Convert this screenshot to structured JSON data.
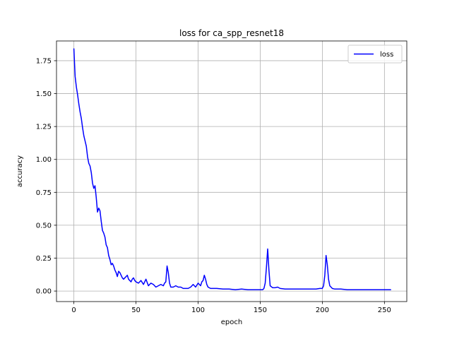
{
  "chart_data": {
    "type": "line",
    "title": "loss for ca_spp_resnet18",
    "xlabel": "epoch",
    "ylabel": "accuracy",
    "xlim": [
      -14,
      268
    ],
    "ylim": [
      -0.08,
      1.9
    ],
    "xticks": [
      0,
      50,
      100,
      150,
      200,
      250
    ],
    "xtick_labels": [
      "0",
      "50",
      "100",
      "150",
      "200",
      "250"
    ],
    "yticks": [
      0.0,
      0.25,
      0.5,
      0.75,
      1.0,
      1.25,
      1.5,
      1.75
    ],
    "ytick_labels": [
      "0.00",
      "0.25",
      "0.50",
      "0.75",
      "1.00",
      "1.25",
      "1.50",
      "1.75"
    ],
    "grid": true,
    "legend_position": "upper-right",
    "series": [
      {
        "name": "loss",
        "color": "#0000ff",
        "x": [
          0,
          1,
          2,
          3,
          4,
          5,
          6,
          7,
          8,
          9,
          10,
          11,
          12,
          13,
          14,
          15,
          16,
          17,
          18,
          19,
          20,
          21,
          22,
          23,
          24,
          25,
          26,
          27,
          28,
          29,
          30,
          31,
          32,
          33,
          34,
          35,
          36,
          37,
          38,
          39,
          40,
          41,
          42,
          43,
          44,
          45,
          46,
          47,
          48,
          49,
          50,
          52,
          54,
          56,
          58,
          60,
          62,
          64,
          66,
          68,
          70,
          72,
          73,
          74,
          75,
          76,
          77,
          78,
          80,
          82,
          84,
          86,
          88,
          90,
          92,
          94,
          96,
          97,
          98,
          100,
          101,
          102,
          103,
          104,
          105,
          106,
          107,
          108,
          110,
          112,
          115,
          120,
          125,
          130,
          135,
          140,
          145,
          150,
          152,
          153,
          154,
          155,
          156,
          157,
          158,
          160,
          162,
          164,
          166,
          170,
          175,
          180,
          185,
          190,
          195,
          198,
          200,
          201,
          202,
          203,
          204,
          205,
          206,
          208,
          210,
          215,
          220,
          225,
          230,
          235,
          240,
          245,
          250,
          255
        ],
        "y": [
          1.84,
          1.63,
          1.55,
          1.49,
          1.42,
          1.36,
          1.31,
          1.24,
          1.18,
          1.14,
          1.1,
          1.02,
          0.97,
          0.95,
          0.9,
          0.82,
          0.78,
          0.8,
          0.71,
          0.6,
          0.63,
          0.61,
          0.53,
          0.46,
          0.44,
          0.41,
          0.35,
          0.33,
          0.27,
          0.24,
          0.2,
          0.21,
          0.19,
          0.16,
          0.14,
          0.11,
          0.15,
          0.14,
          0.12,
          0.1,
          0.09,
          0.1,
          0.11,
          0.12,
          0.09,
          0.08,
          0.07,
          0.09,
          0.1,
          0.08,
          0.07,
          0.06,
          0.08,
          0.05,
          0.09,
          0.04,
          0.06,
          0.05,
          0.03,
          0.04,
          0.05,
          0.04,
          0.06,
          0.07,
          0.19,
          0.14,
          0.06,
          0.03,
          0.03,
          0.04,
          0.03,
          0.03,
          0.02,
          0.02,
          0.02,
          0.03,
          0.05,
          0.04,
          0.03,
          0.06,
          0.05,
          0.04,
          0.07,
          0.08,
          0.12,
          0.09,
          0.05,
          0.03,
          0.02,
          0.02,
          0.02,
          0.015,
          0.015,
          0.01,
          0.015,
          0.01,
          0.01,
          0.01,
          0.01,
          0.02,
          0.06,
          0.18,
          0.32,
          0.16,
          0.04,
          0.025,
          0.025,
          0.03,
          0.02,
          0.015,
          0.015,
          0.015,
          0.015,
          0.015,
          0.015,
          0.02,
          0.02,
          0.04,
          0.12,
          0.27,
          0.2,
          0.09,
          0.04,
          0.02,
          0.015,
          0.015,
          0.01,
          0.01,
          0.01,
          0.01,
          0.01,
          0.01,
          0.01,
          0.01
        ]
      }
    ]
  }
}
